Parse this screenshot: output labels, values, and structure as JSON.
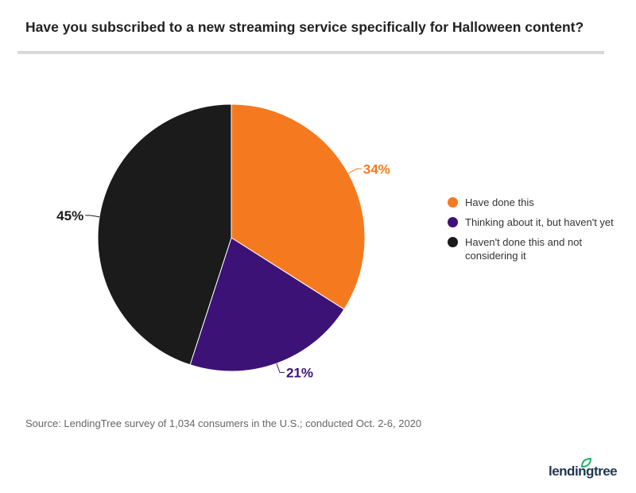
{
  "chart_data": {
    "type": "pie",
    "title": "Have you subscribed to a new streaming service specifically for Halloween content?",
    "series": [
      {
        "name": "Have done this",
        "value": 34,
        "label": "34%",
        "color": "#F57A1F"
      },
      {
        "name": "Thinking about it, but haven't yet",
        "value": 21,
        "label": "21%",
        "color": "#3D1277"
      },
      {
        "name": "Haven't done this and not considering it",
        "value": 45,
        "label": "45%",
        "color": "#1B1B1B"
      }
    ],
    "legend": "right",
    "source": "Source: LendingTree survey of 1,034 consumers in the U.S.; conducted Oct. 2-6, 2020"
  },
  "logo": {
    "text": "lendingtree",
    "leaf_color": "#1DB36B"
  }
}
